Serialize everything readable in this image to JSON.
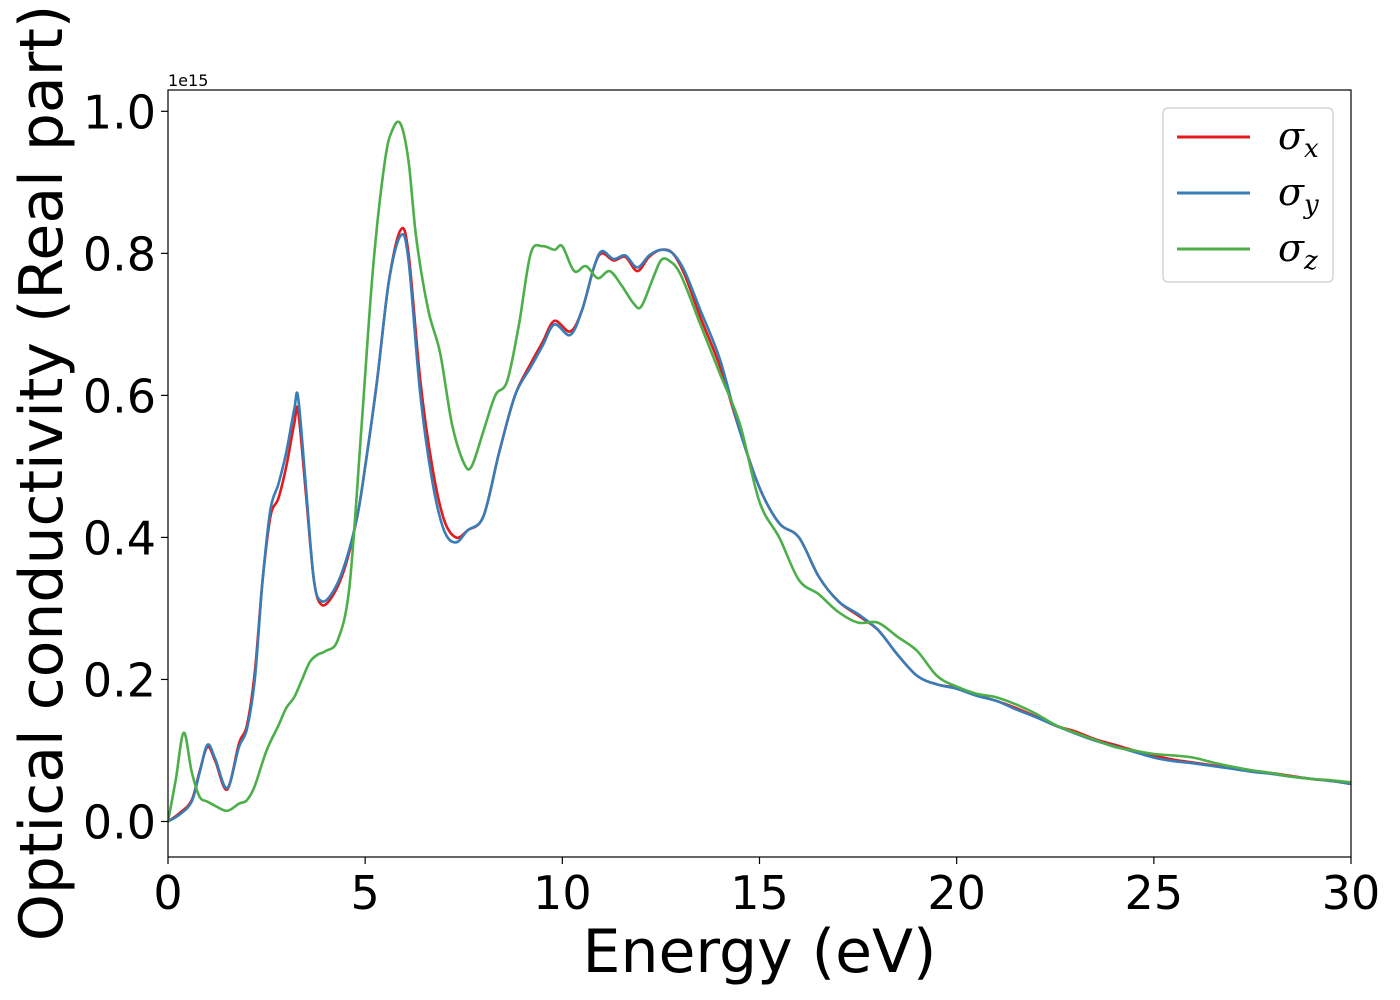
{
  "chart_data": {
    "type": "line",
    "xlabel": "Energy (eV)",
    "ylabel": "Optical conductivity (Real part)",
    "y_offset_text": "1e15",
    "y_scale_factor": 1000000000000000.0,
    "xlim": [
      0,
      30
    ],
    "ylim": [
      -0.05,
      1.03
    ],
    "xticks": [
      0,
      5,
      10,
      15,
      20,
      25,
      30
    ],
    "xtick_labels": [
      "0",
      "5",
      "10",
      "15",
      "20",
      "25",
      "30"
    ],
    "yticks": [
      0.0,
      0.2,
      0.4,
      0.6,
      0.8,
      1.0
    ],
    "ytick_labels": [
      "0.0",
      "0.2",
      "0.4",
      "0.6",
      "0.8",
      "1.0"
    ],
    "grid": false,
    "legend_position": "top-right",
    "series": [
      {
        "name": "σx",
        "legend_base": "σ",
        "legend_sub": "x",
        "color": "#e41a1c",
        "x": [
          0,
          0.3,
          0.6,
          0.8,
          1.0,
          1.2,
          1.5,
          1.8,
          2.0,
          2.2,
          2.4,
          2.6,
          2.8,
          3.0,
          3.2,
          3.3,
          3.5,
          3.7,
          3.9,
          4.2,
          4.5,
          4.8,
          5.0,
          5.3,
          5.6,
          5.9,
          6.1,
          6.4,
          6.7,
          7.0,
          7.3,
          7.6,
          8.0,
          8.4,
          8.8,
          9.2,
          9.5,
          9.8,
          10.2,
          10.5,
          10.8,
          11.0,
          11.3,
          11.6,
          11.9,
          12.2,
          12.5,
          12.8,
          13.1,
          13.5,
          14.0,
          14.5,
          15.0,
          15.5,
          16.0,
          16.5,
          17.0,
          17.5,
          18.0,
          18.5,
          19.0,
          19.5,
          20.0,
          20.5,
          21.0,
          21.5,
          22.0,
          22.5,
          23.0,
          23.5,
          24.0,
          24.5,
          25.0,
          25.5,
          26.0,
          26.5,
          27.0,
          27.5,
          28.0,
          28.5,
          29.0,
          29.5,
          30.0
        ],
        "y": [
          0.0,
          0.012,
          0.03,
          0.07,
          0.105,
          0.085,
          0.045,
          0.11,
          0.135,
          0.21,
          0.34,
          0.43,
          0.455,
          0.5,
          0.56,
          0.578,
          0.46,
          0.34,
          0.305,
          0.32,
          0.36,
          0.43,
          0.5,
          0.62,
          0.76,
          0.833,
          0.8,
          0.62,
          0.5,
          0.425,
          0.4,
          0.41,
          0.43,
          0.52,
          0.6,
          0.645,
          0.675,
          0.705,
          0.69,
          0.72,
          0.78,
          0.8,
          0.79,
          0.795,
          0.775,
          0.795,
          0.805,
          0.8,
          0.77,
          0.71,
          0.64,
          0.55,
          0.47,
          0.42,
          0.4,
          0.345,
          0.31,
          0.29,
          0.27,
          0.235,
          0.205,
          0.193,
          0.188,
          0.178,
          0.17,
          0.16,
          0.148,
          0.135,
          0.127,
          0.116,
          0.108,
          0.1,
          0.093,
          0.087,
          0.083,
          0.079,
          0.075,
          0.071,
          0.068,
          0.064,
          0.06,
          0.057,
          0.053
        ]
      },
      {
        "name": "σy",
        "legend_base": "σ",
        "legend_sub": "y",
        "color": "#377eb8",
        "x": [
          0,
          0.3,
          0.6,
          0.8,
          1.0,
          1.2,
          1.5,
          1.8,
          2.0,
          2.2,
          2.4,
          2.6,
          2.8,
          3.0,
          3.2,
          3.3,
          3.5,
          3.7,
          3.9,
          4.2,
          4.5,
          4.8,
          5.0,
          5.3,
          5.6,
          5.9,
          6.1,
          6.4,
          6.7,
          7.0,
          7.3,
          7.6,
          8.0,
          8.4,
          8.8,
          9.2,
          9.5,
          9.8,
          10.2,
          10.5,
          10.8,
          11.0,
          11.3,
          11.6,
          11.9,
          12.2,
          12.5,
          12.8,
          13.1,
          13.5,
          14.0,
          14.5,
          15.0,
          15.5,
          16.0,
          16.5,
          17.0,
          17.5,
          18.0,
          18.5,
          19.0,
          19.5,
          20.0,
          20.5,
          21.0,
          21.5,
          22.0,
          22.5,
          23.0,
          23.5,
          24.0,
          24.5,
          25.0,
          25.5,
          26.0,
          26.5,
          27.0,
          27.5,
          28.0,
          28.5,
          29.0,
          29.5,
          30.0
        ],
        "y": [
          0.0,
          0.01,
          0.028,
          0.068,
          0.108,
          0.088,
          0.047,
          0.105,
          0.13,
          0.2,
          0.34,
          0.44,
          0.475,
          0.52,
          0.58,
          0.597,
          0.47,
          0.34,
          0.31,
          0.325,
          0.365,
          0.43,
          0.5,
          0.62,
          0.76,
          0.825,
          0.79,
          0.6,
          0.48,
          0.41,
          0.393,
          0.41,
          0.43,
          0.52,
          0.6,
          0.64,
          0.67,
          0.7,
          0.685,
          0.72,
          0.78,
          0.803,
          0.792,
          0.797,
          0.78,
          0.797,
          0.805,
          0.8,
          0.775,
          0.72,
          0.65,
          0.55,
          0.47,
          0.42,
          0.4,
          0.345,
          0.31,
          0.292,
          0.27,
          0.235,
          0.205,
          0.193,
          0.187,
          0.177,
          0.17,
          0.158,
          0.147,
          0.135,
          0.124,
          0.114,
          0.106,
          0.098,
          0.09,
          0.085,
          0.082,
          0.078,
          0.074,
          0.07,
          0.067,
          0.063,
          0.06,
          0.057,
          0.053
        ]
      },
      {
        "name": "σz",
        "legend_base": "σ",
        "legend_sub": "z",
        "color": "#4daf4a",
        "x": [
          0,
          0.2,
          0.4,
          0.6,
          0.8,
          1.0,
          1.2,
          1.5,
          1.8,
          2.0,
          2.2,
          2.5,
          2.8,
          3.0,
          3.2,
          3.4,
          3.6,
          3.8,
          4.0,
          4.3,
          4.6,
          4.9,
          5.2,
          5.5,
          5.7,
          5.9,
          6.1,
          6.3,
          6.6,
          6.9,
          7.2,
          7.5,
          7.7,
          8.0,
          8.3,
          8.6,
          8.9,
          9.2,
          9.5,
          9.8,
          10.0,
          10.3,
          10.6,
          10.9,
          11.2,
          11.5,
          11.8,
          12.0,
          12.3,
          12.5,
          12.7,
          13.0,
          13.5,
          14.0,
          14.5,
          15.0,
          15.5,
          16.0,
          16.5,
          17.0,
          17.5,
          18.0,
          18.5,
          19.0,
          19.5,
          20.0,
          20.5,
          21.0,
          21.5,
          22.0,
          22.5,
          23.0,
          23.5,
          24.0,
          24.5,
          25.0,
          25.5,
          26.0,
          26.5,
          27.0,
          27.5,
          28.0,
          28.5,
          29.0,
          29.5,
          30.0
        ],
        "y": [
          0.0,
          0.06,
          0.125,
          0.07,
          0.035,
          0.028,
          0.022,
          0.015,
          0.025,
          0.03,
          0.05,
          0.1,
          0.135,
          0.16,
          0.175,
          0.2,
          0.225,
          0.235,
          0.24,
          0.255,
          0.33,
          0.55,
          0.78,
          0.93,
          0.975,
          0.982,
          0.93,
          0.82,
          0.72,
          0.66,
          0.56,
          0.505,
          0.5,
          0.55,
          0.6,
          0.62,
          0.7,
          0.8,
          0.81,
          0.805,
          0.81,
          0.775,
          0.782,
          0.765,
          0.775,
          0.755,
          0.73,
          0.725,
          0.765,
          0.79,
          0.79,
          0.77,
          0.7,
          0.63,
          0.56,
          0.45,
          0.4,
          0.34,
          0.32,
          0.295,
          0.28,
          0.28,
          0.26,
          0.24,
          0.205,
          0.19,
          0.18,
          0.175,
          0.165,
          0.152,
          0.136,
          0.125,
          0.115,
          0.105,
          0.1,
          0.095,
          0.093,
          0.09,
          0.083,
          0.077,
          0.072,
          0.068,
          0.063,
          0.06,
          0.058,
          0.055
        ]
      }
    ]
  }
}
